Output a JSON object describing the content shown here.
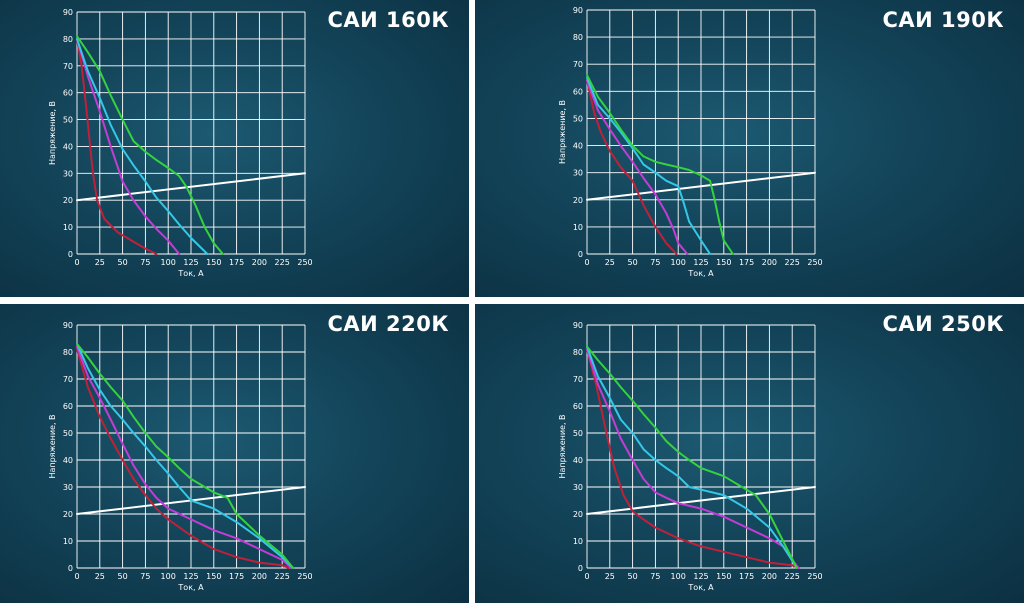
{
  "chart_data": [
    {
      "type": "line",
      "title": "САИ 160К",
      "xlabel": "Ток, А",
      "ylabel": "Напряжение, В",
      "xlim": [
        0,
        250
      ],
      "ylim": [
        0,
        90
      ],
      "xticks": [
        0,
        25,
        50,
        75,
        100,
        125,
        150,
        175,
        200,
        225,
        250
      ],
      "yticks": [
        0,
        10,
        20,
        30,
        40,
        50,
        60,
        70,
        80,
        90
      ],
      "grid": true,
      "series": [
        {
          "color": "#ffffff",
          "x": [
            0,
            250
          ],
          "y": [
            20,
            30
          ]
        },
        {
          "color": "#c0203a",
          "x": [
            0,
            5,
            10,
            15,
            18,
            22,
            30,
            45,
            60,
            75,
            87
          ],
          "y": [
            80,
            70,
            55,
            38,
            29,
            20,
            13,
            8,
            5,
            2,
            0
          ]
        },
        {
          "color": "#c43cd4",
          "x": [
            0,
            12,
            25,
            37,
            50,
            62,
            75,
            88,
            100,
            112
          ],
          "y": [
            80,
            66,
            53,
            40,
            27,
            20,
            14,
            9,
            5,
            0
          ]
        },
        {
          "color": "#33c8e6",
          "x": [
            0,
            12,
            25,
            37,
            50,
            62,
            75,
            87,
            100,
            112,
            125,
            137,
            143
          ],
          "y": [
            80,
            68,
            58,
            48,
            39,
            33,
            27,
            21,
            16,
            11,
            6,
            2,
            0
          ]
        },
        {
          "color": "#35d23e",
          "x": [
            0,
            12,
            25,
            37,
            50,
            62,
            75,
            87,
            100,
            112,
            120,
            130,
            140,
            150,
            160
          ],
          "y": [
            81,
            75,
            68,
            59,
            50,
            42,
            38,
            35,
            32,
            29,
            25,
            18,
            10,
            4,
            0
          ]
        }
      ]
    },
    {
      "type": "line",
      "title": "САИ 190К",
      "xlabel": "Ток, А",
      "ylabel": "Напряжение, В",
      "xlim": [
        0,
        250
      ],
      "ylim": [
        0,
        90
      ],
      "xticks": [
        0,
        25,
        50,
        75,
        100,
        125,
        150,
        175,
        200,
        225,
        250
      ],
      "yticks": [
        0,
        10,
        20,
        30,
        40,
        50,
        60,
        70,
        80,
        90
      ],
      "grid": true,
      "series": [
        {
          "color": "#ffffff",
          "x": [
            0,
            250
          ],
          "y": [
            20,
            30
          ]
        },
        {
          "color": "#c0203a",
          "x": [
            0,
            8,
            15,
            25,
            37,
            50,
            62,
            75,
            87,
            98
          ],
          "y": [
            64,
            52,
            45,
            38,
            32,
            27,
            18,
            10,
            4,
            0
          ]
        },
        {
          "color": "#c43cd4",
          "x": [
            0,
            12,
            25,
            37,
            50,
            62,
            75,
            87,
            95,
            100,
            110
          ],
          "y": [
            64,
            53,
            46,
            40,
            34,
            28,
            22,
            15,
            9,
            4,
            0
          ]
        },
        {
          "color": "#33c8e6",
          "x": [
            0,
            12,
            25,
            37,
            50,
            62,
            75,
            87,
            100,
            105,
            112,
            125,
            135
          ],
          "y": [
            65,
            55,
            50,
            45,
            39,
            33,
            30,
            27,
            25,
            20,
            12,
            5,
            0
          ]
        },
        {
          "color": "#35d23e",
          "x": [
            0,
            12,
            25,
            37,
            50,
            62,
            75,
            87,
            100,
            112,
            125,
            135,
            140,
            145,
            150,
            160
          ],
          "y": [
            66,
            58,
            52,
            46,
            40,
            36,
            34,
            33,
            32,
            31,
            29,
            27,
            20,
            12,
            5,
            0
          ]
        }
      ]
    },
    {
      "type": "line",
      "title": "САИ 220К",
      "xlabel": "Ток, А",
      "ylabel": "Напряжение, В",
      "xlim": [
        0,
        250
      ],
      "ylim": [
        0,
        90
      ],
      "xticks": [
        0,
        25,
        50,
        75,
        100,
        125,
        150,
        175,
        200,
        225,
        250
      ],
      "yticks": [
        0,
        10,
        20,
        30,
        40,
        50,
        60,
        70,
        80,
        90
      ],
      "grid": true,
      "series": [
        {
          "color": "#ffffff",
          "x": [
            0,
            250
          ],
          "y": [
            20,
            30
          ]
        },
        {
          "color": "#c0203a",
          "x": [
            0,
            12,
            25,
            37,
            50,
            62,
            75,
            87,
            100,
            125,
            150,
            175,
            200,
            225,
            232
          ],
          "y": [
            81,
            67,
            56,
            48,
            40,
            33,
            27,
            22,
            18,
            12,
            7,
            4,
            2,
            1,
            0
          ]
        },
        {
          "color": "#c43cd4",
          "x": [
            0,
            12,
            25,
            37,
            50,
            62,
            75,
            87,
            100,
            125,
            150,
            175,
            200,
            225,
            235
          ],
          "y": [
            82,
            71,
            63,
            55,
            46,
            38,
            31,
            26,
            22,
            18,
            14,
            11,
            7,
            3,
            0
          ]
        },
        {
          "color": "#33c8e6",
          "x": [
            0,
            12,
            25,
            37,
            50,
            62,
            75,
            87,
            100,
            112,
            125,
            150,
            175,
            200,
            225,
            237
          ],
          "y": [
            83,
            74,
            66,
            60,
            55,
            50,
            45,
            40,
            35,
            30,
            25,
            22,
            17,
            11,
            4,
            0
          ]
        },
        {
          "color": "#35d23e",
          "x": [
            0,
            12,
            25,
            37,
            50,
            62,
            75,
            87,
            100,
            112,
            125,
            150,
            165,
            175,
            200,
            225,
            237
          ],
          "y": [
            83,
            78,
            72,
            67,
            62,
            56,
            50,
            45,
            41,
            37,
            33,
            28,
            26,
            20,
            12,
            5,
            0
          ]
        }
      ]
    },
    {
      "type": "line",
      "title": "САИ 250К",
      "xlabel": "Ток, А",
      "ylabel": "Напряжение, В",
      "xlim": [
        0,
        250
      ],
      "ylim": [
        0,
        90
      ],
      "xticks": [
        0,
        25,
        50,
        75,
        100,
        125,
        150,
        175,
        200,
        225,
        250
      ],
      "yticks": [
        0,
        10,
        20,
        30,
        40,
        50,
        60,
        70,
        80,
        90
      ],
      "grid": true,
      "series": [
        {
          "color": "#ffffff",
          "x": [
            0,
            250
          ],
          "y": [
            20,
            30
          ]
        },
        {
          "color": "#c0203a",
          "x": [
            0,
            10,
            20,
            30,
            40,
            50,
            62,
            75,
            100,
            125,
            150,
            175,
            200,
            225,
            232
          ],
          "y": [
            81,
            68,
            52,
            37,
            27,
            21,
            18,
            15,
            11,
            8,
            6,
            4,
            2,
            1,
            0
          ]
        },
        {
          "color": "#c43cd4",
          "x": [
            0,
            12,
            25,
            37,
            50,
            62,
            75,
            87,
            100,
            125,
            150,
            175,
            200,
            215,
            225,
            232
          ],
          "y": [
            81,
            68,
            58,
            48,
            40,
            33,
            28,
            26,
            24,
            22,
            19,
            15,
            11,
            8,
            3,
            0
          ]
        },
        {
          "color": "#33c8e6",
          "x": [
            0,
            12,
            25,
            37,
            50,
            62,
            75,
            87,
            100,
            112,
            125,
            150,
            175,
            200,
            215,
            230
          ],
          "y": [
            82,
            71,
            63,
            55,
            50,
            44,
            40,
            37,
            34,
            30,
            29,
            27,
            22,
            15,
            8,
            0
          ]
        },
        {
          "color": "#35d23e",
          "x": [
            0,
            12,
            25,
            37,
            50,
            62,
            75,
            87,
            100,
            112,
            125,
            150,
            175,
            185,
            200,
            215,
            230
          ],
          "y": [
            82,
            77,
            72,
            67,
            62,
            57,
            52,
            47,
            43,
            40,
            37,
            34,
            29,
            27,
            20,
            10,
            0
          ]
        }
      ]
    }
  ]
}
